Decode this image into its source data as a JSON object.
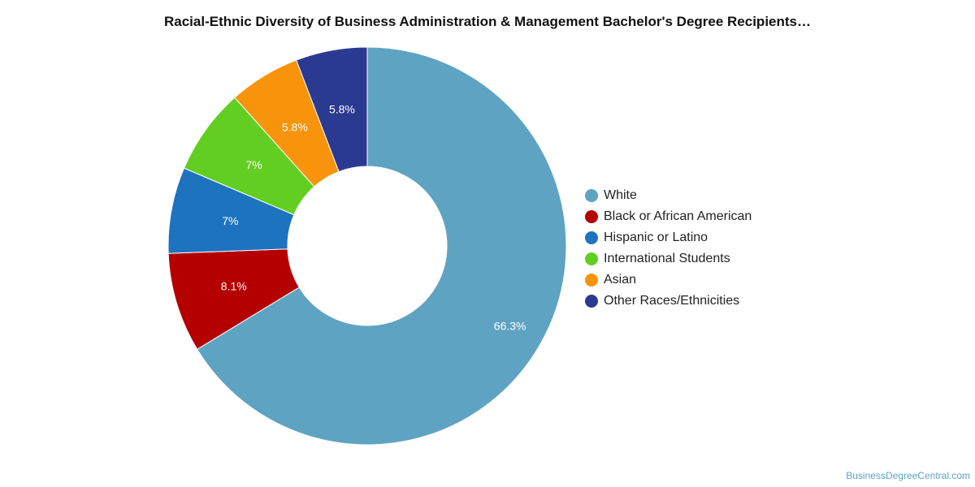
{
  "chart_data": {
    "type": "pie",
    "donut": true,
    "title": "Racial-Ethnic Diversity of Business Administration & Management Bachelor's Degree Recipients…",
    "categories": [
      "White",
      "Black or African American",
      "Hispanic or Latino",
      "International Students",
      "Asian",
      "Other Races/Ethnicities"
    ],
    "values": [
      66.3,
      8.1,
      7,
      7,
      5.8,
      5.8
    ],
    "labels": [
      "66.3%",
      "8.1%",
      "7%",
      "7%",
      "5.8%",
      "5.8%"
    ],
    "colors": [
      "#5fa3c2",
      "#b50000",
      "#1e73be",
      "#62ce22",
      "#f7940b",
      "#2b3a91"
    ],
    "legend_position": "right"
  },
  "credit": "BusinessDegreeCentral.com"
}
